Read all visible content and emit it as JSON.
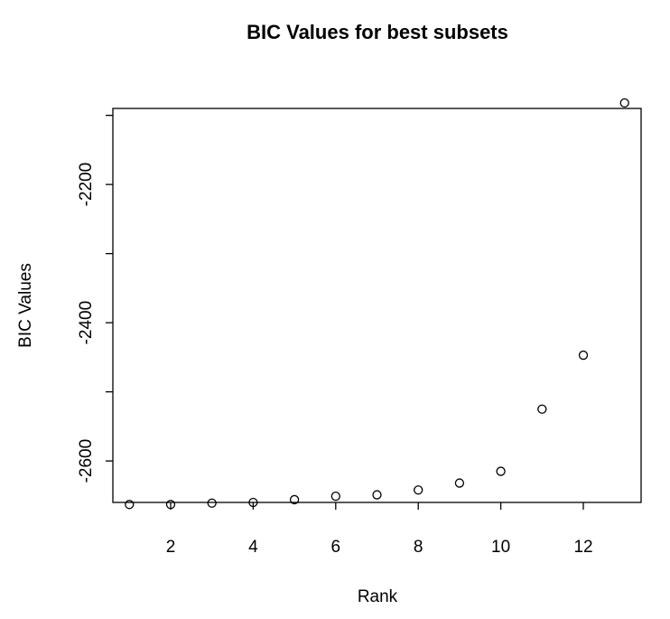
{
  "chart_data": {
    "type": "scatter",
    "title": "BIC Values for best subsets",
    "xlabel": "Rank",
    "ylabel": "BIC Values",
    "xlim": [
      0.6,
      13.4
    ],
    "ylim": [
      -2660,
      -2090
    ],
    "x_ticks": [
      2,
      4,
      6,
      8,
      10,
      12
    ],
    "y_ticks": [
      -2600,
      -2400,
      -2200
    ],
    "x_tick_labels": [
      "2",
      "4",
      "6",
      "8",
      "10",
      "12"
    ],
    "y_tick_labels": [
      "-2600",
      "-2400",
      "-2200"
    ],
    "y_minor_ticks": [
      -2500,
      -2300,
      -2100
    ],
    "grid": false,
    "marker": "open-circle",
    "color": "#000000",
    "points": [
      {
        "x": 1,
        "y": -2663
      },
      {
        "x": 2,
        "y": -2663
      },
      {
        "x": 3,
        "y": -2661
      },
      {
        "x": 4,
        "y": -2660
      },
      {
        "x": 5,
        "y": -2656
      },
      {
        "x": 6,
        "y": -2651
      },
      {
        "x": 7,
        "y": -2649
      },
      {
        "x": 8,
        "y": -2642
      },
      {
        "x": 9,
        "y": -2632
      },
      {
        "x": 10,
        "y": -2615
      },
      {
        "x": 11,
        "y": -2525
      },
      {
        "x": 12,
        "y": -2447
      },
      {
        "x": 13,
        "y": -2082
      }
    ]
  }
}
